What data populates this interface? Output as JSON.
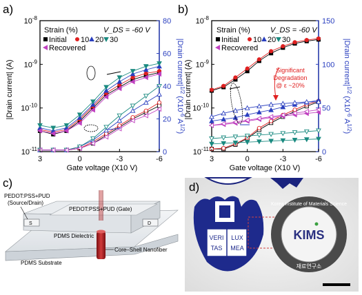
{
  "panels": {
    "a": "a)",
    "b": "b)",
    "c": "c)",
    "d": "d)"
  },
  "chart_data": [
    {
      "type": "line",
      "panel": "a",
      "xlabel": "Gate voltage (X10 V)",
      "ylabel": "|Drain current| (A)",
      "y2label": "|Drain current|^1/2 (X10^-6 A^1/2)",
      "x_ticks": [
        "3",
        "0",
        "-3",
        "-6"
      ],
      "y_ticks": [
        "10^-11",
        "10^-10",
        "10^-9",
        "10^-8"
      ],
      "y2_ticks": [
        "0",
        "20",
        "40",
        "60",
        "80"
      ],
      "xlim": [
        3,
        -6
      ],
      "ylim": [
        1e-11,
        1e-08
      ],
      "y2lim": [
        0,
        80
      ],
      "y_scale": "log",
      "legend_title": "Strain (%)",
      "annotation": "V_DS = -60 V",
      "legend": [
        "Initial",
        "10",
        "20",
        "30",
        "Recovered"
      ],
      "x": [
        3,
        2,
        1,
        0,
        -1,
        -2,
        -3,
        -4,
        -5,
        -6
      ],
      "series": [
        {
          "name": "Initial",
          "color": "#000000",
          "marker": "square",
          "log_values": [
            3e-11,
            2.5e-11,
            3e-11,
            5e-11,
            1e-10,
            2e-10,
            3e-10,
            4.5e-10,
            5.5e-10,
            6.5e-10
          ],
          "sqrt_values": [
            1,
            1,
            1,
            2,
            5,
            10,
            15,
            20,
            24,
            28
          ]
        },
        {
          "name": "10",
          "color": "#e02020",
          "marker": "circle",
          "log_values": [
            3.2e-11,
            2.8e-11,
            3.2e-11,
            5.5e-11,
            1.1e-10,
            2.2e-10,
            3.4e-10,
            5e-10,
            6.2e-10,
            7e-10
          ],
          "sqrt_values": [
            1,
            1,
            1,
            2,
            6,
            11,
            16,
            21,
            25,
            30
          ]
        },
        {
          "name": "20",
          "color": "#2a3fbf",
          "marker": "triangle-up",
          "log_values": [
            3.5e-11,
            3e-11,
            3.5e-11,
            6e-11,
            1.2e-10,
            2.5e-10,
            4e-10,
            6e-10,
            7.5e-10,
            9e-10
          ],
          "sqrt_values": [
            1,
            1,
            1,
            3,
            7,
            13,
            19,
            25,
            30,
            35
          ]
        },
        {
          "name": "30",
          "color": "#1a8a80",
          "marker": "triangle-down",
          "log_values": [
            4e-11,
            3.5e-11,
            4e-11,
            7e-11,
            1.4e-10,
            3e-10,
            5e-10,
            7e-10,
            9e-10,
            1.05e-09
          ],
          "sqrt_values": [
            1,
            1,
            1,
            3,
            8,
            15,
            22,
            28,
            34,
            40
          ]
        },
        {
          "name": "Recovered",
          "color": "#c040c0",
          "marker": "triangle-left",
          "log_values": [
            3e-11,
            2.6e-11,
            3e-11,
            4.5e-11,
            9e-11,
            1.8e-10,
            2.8e-10,
            4e-10,
            5e-10,
            6e-10
          ],
          "sqrt_values": [
            1,
            1,
            1,
            2,
            5,
            9,
            14,
            19,
            22,
            26
          ]
        }
      ]
    },
    {
      "type": "line",
      "panel": "b",
      "xlabel": "Gate voltage (X10 V)",
      "ylabel": "|Drain current| (A)",
      "y2label": "|Drain current|^1/2 (X10^-6 A^1/2)",
      "x_ticks": [
        "3",
        "0",
        "-3",
        "-6"
      ],
      "y_ticks": [
        "10^-11",
        "10^-10",
        "10^-9",
        "10^-8"
      ],
      "y2_ticks": [
        "0",
        "50",
        "100",
        "150"
      ],
      "xlim": [
        3,
        -6
      ],
      "ylim": [
        1e-11,
        1e-08
      ],
      "y2lim": [
        0,
        150
      ],
      "y_scale": "log",
      "legend_title": "Strain (%)",
      "annotation": "V_DS = -60 V",
      "callout": "Significant Degradation @ ε ~20%",
      "legend": [
        "Initial",
        "10",
        "20",
        "30",
        "Recovered"
      ],
      "x": [
        3,
        2,
        1,
        0,
        -1,
        -2,
        -3,
        -4,
        -5,
        -6
      ],
      "series": [
        {
          "name": "Initial",
          "color": "#000000",
          "marker": "square",
          "log_values": [
            2.5e-10,
            3e-10,
            4.5e-10,
            7e-10,
            1.2e-09,
            1.8e-09,
            2.4e-09,
            3e-09,
            3.4e-09,
            3.7e-09
          ],
          "sqrt_values": [
            3,
            3,
            8,
            15,
            25,
            33,
            40,
            46,
            52,
            57
          ]
        },
        {
          "name": "10",
          "color": "#e02020",
          "marker": "circle",
          "log_values": [
            2.6e-10,
            3.2e-10,
            5e-10,
            8e-10,
            1.3e-09,
            2e-09,
            2.6e-09,
            3.2e-09,
            3.6e-09,
            3.9e-09
          ],
          "sqrt_values": [
            3,
            4,
            9,
            16,
            27,
            35,
            42,
            48,
            54,
            58
          ]
        },
        {
          "name": "20",
          "color": "#2a3fbf",
          "marker": "triangle-up",
          "log_values": [
            5e-11,
            5.5e-11,
            6e-11,
            7e-11,
            8e-11,
            9e-11,
            1.05e-10,
            1.2e-10,
            1.35e-10,
            1.5e-10
          ],
          "sqrt_values": [
            40,
            44,
            47,
            50,
            52,
            54,
            55,
            56,
            57,
            57
          ]
        },
        {
          "name": "30",
          "color": "#1a8a80",
          "marker": "triangle-down",
          "log_values": [
            1.5e-11,
            1.55e-11,
            1.6e-11,
            1.65e-11,
            1.7e-11,
            1.75e-11,
            1.8e-11,
            1.85e-11,
            1.9e-11,
            1.95e-11
          ],
          "sqrt_values": [
            15,
            16,
            17,
            18,
            19,
            20,
            21,
            22,
            23,
            24
          ]
        },
        {
          "name": "Recovered",
          "color": "#c040c0",
          "marker": "triangle-left",
          "log_values": [
            4e-11,
            4.2e-11,
            4.5e-11,
            5e-11,
            5.5e-11,
            6e-11,
            6.5e-11,
            7e-11,
            7.5e-11,
            8e-11
          ],
          "sqrt_values": [
            30,
            32,
            34,
            36,
            38,
            40,
            42,
            44,
            46,
            48
          ]
        }
      ]
    }
  ],
  "diagram": {
    "label_source_drain_1": "PEDOT:PSS+PUD",
    "label_source_drain_2": "(Source/Drain)",
    "label_gate": "PEDOT:PSS+PUD (Gate)",
    "label_s": "S",
    "label_d": "D",
    "label_dielectric": "PDMS Dielectric",
    "label_nanofiber": "Core–Shell Nanofiber",
    "label_substrate": "PDMS Substrate"
  },
  "photo": {
    "seal_left_1": "VERI",
    "seal_left_2": "TAS",
    "seal_right_1": "LUX",
    "seal_right_2": "MEA",
    "logo_text": "KIMS",
    "ring_text": "Korea Institute of Materials Science",
    "ring_text_bottom": "재료연구소"
  }
}
